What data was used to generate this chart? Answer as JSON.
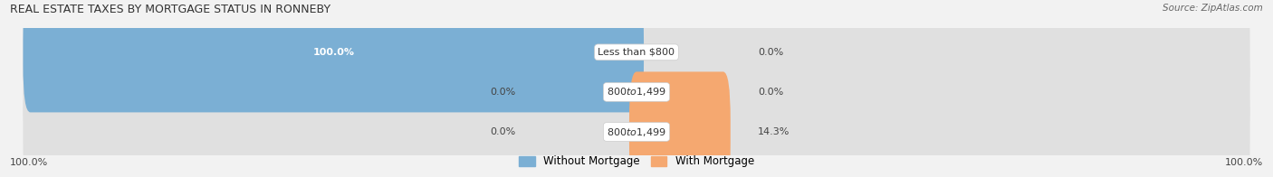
{
  "title": "REAL ESTATE TAXES BY MORTGAGE STATUS IN RONNEBY",
  "source": "Source: ZipAtlas.com",
  "rows": [
    {
      "label": "Less than $800",
      "without": 100.0,
      "with": 0.0
    },
    {
      "label": "$800 to $1,499",
      "without": 0.0,
      "with": 0.0
    },
    {
      "label": "$800 to $1,499",
      "without": 0.0,
      "with": 14.3
    }
  ],
  "color_without": "#7bafd4",
  "color_with": "#f5a870",
  "bar_bg_color": "#e0e0e0",
  "title_color": "#333333",
  "source_color": "#666666",
  "label_color": "#444444",
  "white_label_color": "#ffffff",
  "max_val": 100.0,
  "legend_without": "Without Mortgage",
  "legend_with": "With Mortgage",
  "bottom_left": "100.0%",
  "bottom_right": "100.0%",
  "fig_bg": "#f2f2f2"
}
